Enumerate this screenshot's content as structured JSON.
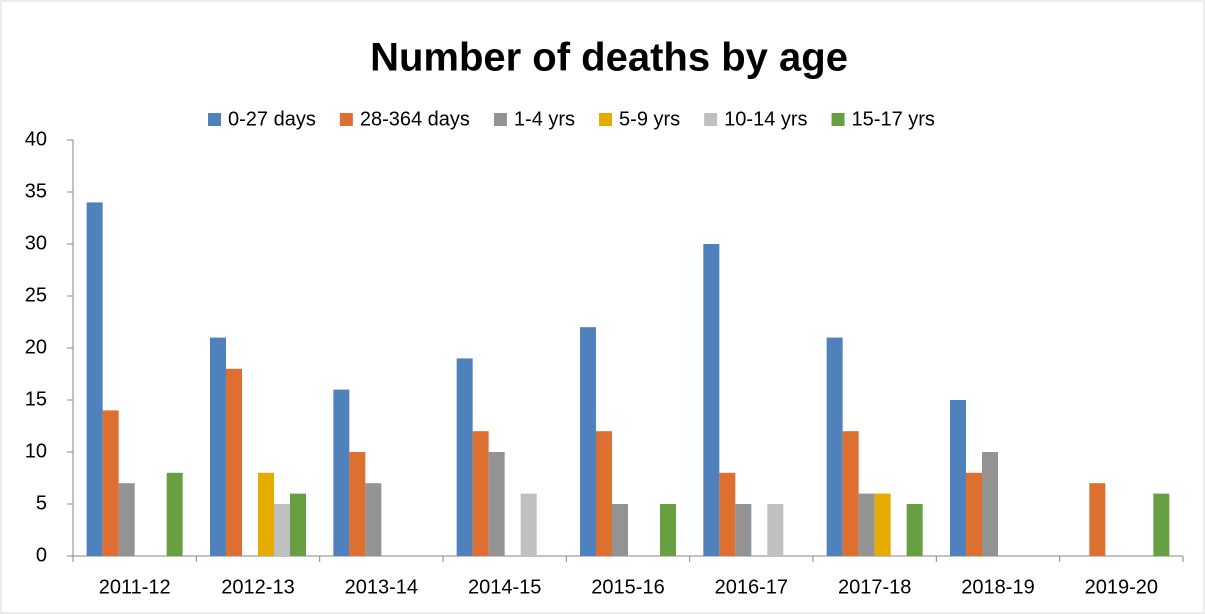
{
  "chart_data": {
    "type": "bar",
    "title": "Number of deaths by age",
    "categories": [
      "2011-12",
      "2012-13",
      "2013-14",
      "2014-15",
      "2015-16",
      "2016-17",
      "2017-18",
      "2018-19",
      "2019-20"
    ],
    "series": [
      {
        "name": "0-27 days",
        "color": "#4f81bd",
        "values": [
          34,
          21,
          16,
          19,
          22,
          30,
          21,
          15,
          0
        ]
      },
      {
        "name": "28-364 days",
        "color": "#dd7030",
        "values": [
          14,
          18,
          10,
          12,
          12,
          8,
          12,
          8,
          7
        ]
      },
      {
        "name": "1-4 yrs",
        "color": "#939393",
        "values": [
          7,
          0,
          7,
          10,
          5,
          5,
          6,
          10,
          0
        ]
      },
      {
        "name": "5-9 yrs",
        "color": "#e5ac00",
        "values": [
          0,
          8,
          0,
          0,
          0,
          0,
          6,
          0,
          0
        ]
      },
      {
        "name": "10-14 yrs",
        "color": "#c0c0c0",
        "values": [
          0,
          5,
          0,
          6,
          0,
          5,
          0,
          0,
          0
        ]
      },
      {
        "name": "15-17 yrs",
        "color": "#66a043",
        "values": [
          8,
          6,
          0,
          0,
          5,
          0,
          5,
          0,
          6
        ]
      }
    ],
    "ylim": [
      0,
      40
    ],
    "yticks": [
      0,
      5,
      10,
      15,
      20,
      25,
      30,
      35,
      40
    ],
    "grid": false,
    "legend": "top"
  }
}
